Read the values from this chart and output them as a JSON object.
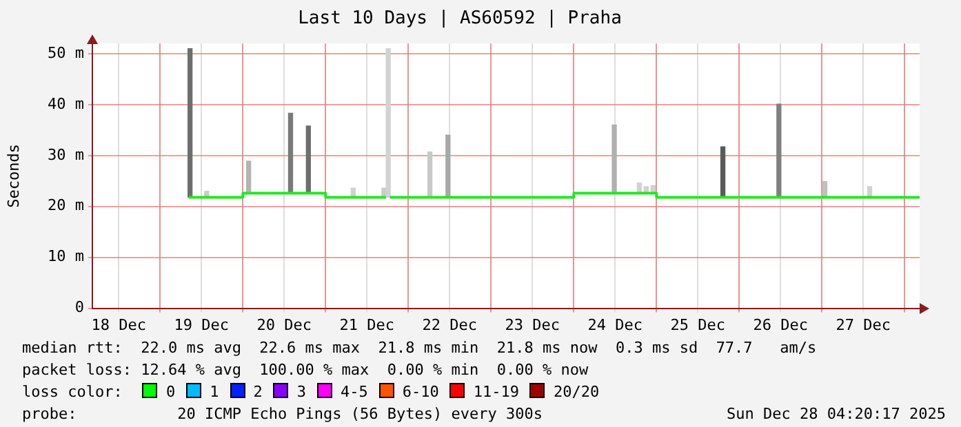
{
  "chart_data": {
    "type": "step",
    "title": "Last 10 Days | AS60592 | Praha",
    "ylabel": "Seconds",
    "xlim": [
      "2025-12-18T04:20",
      "2025-12-28T04:20"
    ],
    "xticks": [
      {
        "value": "2025-12-19T00:00",
        "label": null
      },
      {
        "value": "2025-12-20T00:00",
        "label": null
      },
      {
        "value": "2025-12-21T00:00",
        "label": null
      },
      {
        "value": "2025-12-22T00:00",
        "label": null
      },
      {
        "value": "2025-12-23T00:00",
        "label": null
      },
      {
        "value": "2025-12-24T00:00",
        "label": null
      },
      {
        "value": "2025-12-25T00:00",
        "label": null
      },
      {
        "value": "2025-12-26T00:00",
        "label": null
      },
      {
        "value": "2025-12-27T00:00",
        "label": null
      },
      {
        "value": "2025-12-28T00:00",
        "label": null
      },
      {
        "value": "2025-12-18T12:00",
        "label": "18 Dec"
      },
      {
        "value": "2025-12-19T12:00",
        "label": "19 Dec"
      },
      {
        "value": "2025-12-20T12:00",
        "label": "20 Dec"
      },
      {
        "value": "2025-12-21T12:00",
        "label": "21 Dec"
      },
      {
        "value": "2025-12-22T12:00",
        "label": "22 Dec"
      },
      {
        "value": "2025-12-23T12:00",
        "label": "23 Dec"
      },
      {
        "value": "2025-12-24T12:00",
        "label": "24 Dec"
      },
      {
        "value": "2025-12-25T12:00",
        "label": "25 Dec"
      },
      {
        "value": "2025-12-26T12:00",
        "label": "26 Dec"
      },
      {
        "value": "2025-12-27T12:00",
        "label": "27 Dec"
      }
    ],
    "ylim": [
      0,
      52
    ],
    "yticks": [
      0,
      {
        "value": 10,
        "label": "10 m"
      },
      {
        "value": 20,
        "label": "20 m"
      },
      {
        "value": 30,
        "label": "30 m"
      },
      {
        "value": 40,
        "label": "40 m"
      },
      {
        "value": 50,
        "label": "50 m"
      }
    ],
    "grid": true,
    "legend": false,
    "marker": "none",
    "series": [
      {
        "color": "#22e822",
        "x": [
          "2025-12-19T08:20",
          "2025-12-20T00:00",
          "2025-12-21T00:00",
          "2025-12-21T17:30",
          "2025-12-21T17:40",
          "2025-12-21T18:40",
          "2025-12-24T00:00",
          "2025-12-25T00:00",
          "2025-12-28T04:20"
        ],
        "values": [
          21.8,
          22.6,
          21.8,
          21.8,
          null,
          21.8,
          22.6,
          21.8,
          21.8
        ]
      },
      {
        "type": "bar",
        "x": [
          "2025-12-19T08:40",
          "2025-12-19T13:30",
          "2025-12-20T01:40",
          "2025-12-20T13:50",
          "2025-12-20T19:00",
          "2025-12-21T08:00",
          "2025-12-21T16:55",
          "2025-12-21T18:10",
          "2025-12-22T06:15",
          "2025-12-22T11:30",
          "2025-12-24T11:45",
          "2025-12-24T19:00",
          "2025-12-24T21:00",
          "2025-12-24T23:00",
          "2025-12-25T19:15",
          "2025-12-26T11:30",
          "2025-12-27T00:50",
          "2025-12-27T13:50"
        ],
        "base": [
          21.8,
          21.8,
          22.6,
          22.6,
          22.6,
          21.8,
          21.8,
          21.8,
          21.8,
          21.8,
          22.6,
          22.6,
          22.6,
          22.6,
          21.8,
          21.8,
          21.8,
          21.8
        ],
        "values": [
          29.2,
          1.2,
          6.3,
          15.7,
          13.2,
          1.8,
          1.8,
          29.2,
          8.9,
          12.2,
          13.4,
          2.0,
          1.3,
          1.5,
          9.9,
          18.3,
          3.1,
          2.1
        ],
        "colors": [
          "#6e6e6e",
          "#cccccc",
          "#b4b4b4",
          "#7a7a7a",
          "#6e6e6e",
          "#d2d2d2",
          "#cccccc",
          "#d2d2d2",
          "#c8c8c8",
          "#a8a8a8",
          "#b0b0b0",
          "#d2d2d2",
          "#d2d2d2",
          "#d2d2d2",
          "#5a5a5a",
          "#808080",
          "#c0c0c0",
          "#d2d2d2"
        ]
      }
    ],
    "annotations": [
      "median rtt:  22.0 ms avg  22.6 ms max  21.8 ms min  21.8 ms now  0.3 ms sd  77.7   am/s",
      "packet loss: 12.64 % avg  100.00 % max  0.00 % min  0.00 % now",
      "loss color:",
      "0",
      "1",
      "2",
      "3",
      "4-5",
      "6-10",
      "11-19",
      "20/20",
      "probe:",
      "20 ICMP Echo Pings (56 Bytes) every 300s",
      "Sun Dec 28 04:20:17 2025"
    ]
  }
}
